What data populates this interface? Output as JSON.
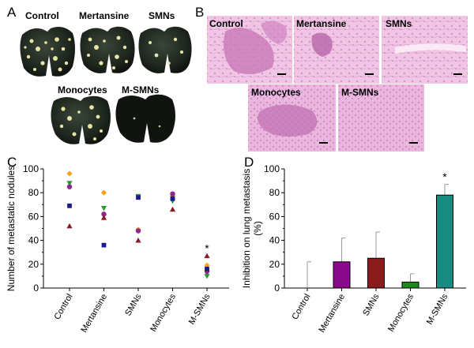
{
  "panels": {
    "A": {
      "letter": "A",
      "labels": [
        "Control",
        "Mertansine",
        "SMNs",
        "Monocytes",
        "M-SMNs"
      ]
    },
    "B": {
      "letter": "B",
      "labels": [
        "Control",
        "Mertansine",
        "SMNs",
        "Monocytes",
        "M-SMNs"
      ]
    },
    "C": {
      "letter": "C"
    },
    "D": {
      "letter": "D"
    }
  },
  "colors": {
    "histo_bg": "#f1c6e4",
    "histo_tissue": "#c76fb5",
    "lung_dark": "#1c241c",
    "nodule": "#e6e3a0",
    "purple": "#8b0a8b",
    "dark_red": "#8b1a1a",
    "green": "#1a8b1a",
    "teal": "#1a8b80"
  },
  "chart_data": [
    {
      "type": "scatter",
      "ylabel": "Number of metastatic nodules",
      "ylim": [
        0,
        100
      ],
      "yticks": [
        "0",
        "20",
        "40",
        "60",
        "80",
        "100"
      ],
      "categories": [
        "Control",
        "Mertansine",
        "SMNs",
        "Monocytes",
        "M-SMNs"
      ],
      "series": [
        {
          "marker": "diamond",
          "color": "#f5a020",
          "values": [
            96,
            80,
            49,
            77,
            19
          ]
        },
        {
          "marker": "down-triangle",
          "color": "#2a9a2a",
          "values": [
            88,
            67,
            77,
            73,
            10
          ]
        },
        {
          "marker": "circle",
          "color": "#8a2a8a",
          "values": [
            85,
            62,
            48,
            79,
            14
          ]
        },
        {
          "marker": "square",
          "color": "#1a1a8a",
          "values": [
            69,
            36,
            76,
            75,
            16
          ]
        },
        {
          "marker": "up-triangle",
          "color": "#8a1a2a",
          "values": [
            52,
            59,
            40,
            66,
            27
          ]
        }
      ],
      "annotations": [
        {
          "category": "M-SMNs",
          "text": "*",
          "value": 34
        }
      ]
    },
    {
      "type": "bar",
      "ylabel": "Inhibition on lung metastasis (%)",
      "ylabel_lines": [
        "Inhibition on lung metastasis",
        "(%)"
      ],
      "ylim": [
        0,
        100
      ],
      "yticks": [
        "0",
        "20",
        "40",
        "60",
        "80",
        "100"
      ],
      "categories": [
        "Control",
        "Mertansine",
        "SMNs",
        "Monocytes",
        "M-SMNs"
      ],
      "values": [
        0,
        22,
        25,
        5,
        78
      ],
      "errors": [
        22,
        20,
        22,
        7,
        9
      ],
      "bar_colors": [
        "#ffffff",
        "#8b0a8b",
        "#8b1a1a",
        "#1a8b1a",
        "#1a8b80"
      ],
      "annotations": [
        {
          "category": "M-SMNs",
          "text": "*",
          "value": 94
        }
      ]
    }
  ]
}
